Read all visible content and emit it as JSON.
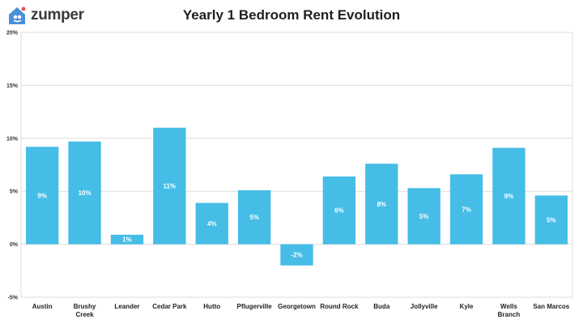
{
  "brand": {
    "name": "zumper",
    "icon": "house-icon",
    "accent": "#4a90d9",
    "dot": "#e84b5b"
  },
  "chart_data": {
    "type": "bar",
    "title": "Yearly 1 Bedroom Rent Evolution",
    "xlabel": "",
    "ylabel": "",
    "categories": [
      "Austin",
      [
        "Brushy",
        "Creek"
      ],
      "Leander",
      "Cedar Park",
      "Hutto",
      "Pflugerville",
      "Georgetown",
      "Round Rock",
      "Buda",
      "Jollyville",
      "Kyle",
      [
        "Wells",
        "Branch"
      ],
      "San Marcos"
    ],
    "values": [
      9.2,
      9.7,
      0.9,
      11.0,
      3.9,
      5.1,
      -2.0,
      6.4,
      7.6,
      5.3,
      6.6,
      9.1,
      4.6
    ],
    "data_labels": [
      "9%",
      "10%",
      "1%",
      "11%",
      "4%",
      "5%",
      "-2%",
      "6%",
      "8%",
      "5%",
      "7%",
      "9%",
      "5%"
    ],
    "yticks": [
      -5,
      0,
      5,
      10,
      15,
      20
    ],
    "ytick_labels": [
      "-5%",
      "0%",
      "5%",
      "10%",
      "15%",
      "20%"
    ],
    "ylim": [
      -5,
      20
    ],
    "grid": true,
    "bar_color": "#45bde6",
    "grid_color": "#dcdcdc"
  }
}
